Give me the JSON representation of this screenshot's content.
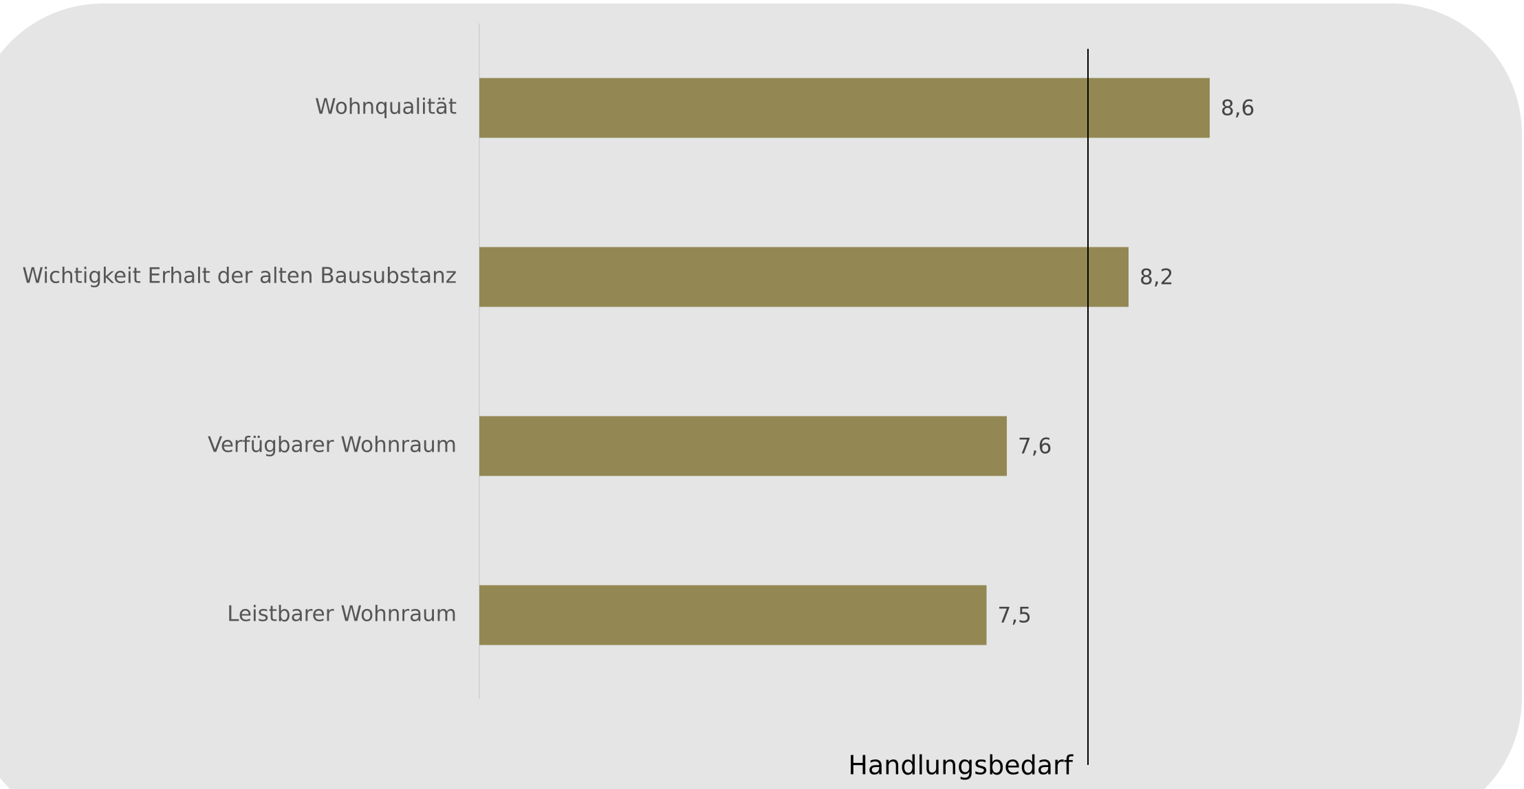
{
  "chart_data": {
    "type": "hbar",
    "categories": [
      "Wohnqualität",
      "Wichtigkeit Erhalt der alten Bausubstanz",
      "Verfügbarer Wohnraum",
      "Leistbarer Wohnraum"
    ],
    "values": [
      8.6,
      8.2,
      7.6,
      7.5
    ],
    "value_labels": [
      "8,6",
      "8,2",
      "7,6",
      "7,5"
    ],
    "color": "#938853",
    "xlim": [
      5,
      10
    ],
    "reference_line": {
      "value": 8,
      "label": "Handlungsbedarf"
    }
  }
}
